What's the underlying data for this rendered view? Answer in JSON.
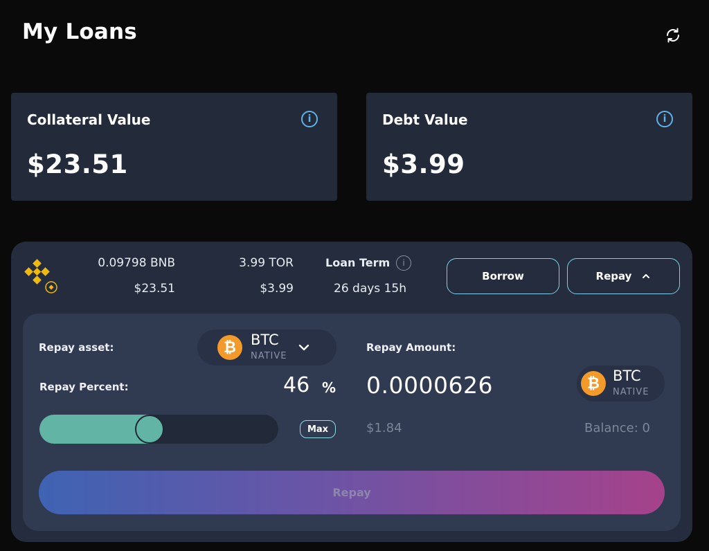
{
  "header": {
    "title": "My Loans",
    "refresh_icon": "refresh-icon"
  },
  "summary": {
    "collateral": {
      "label": "Collateral Value",
      "value": "$23.51",
      "info_glyph": "i"
    },
    "debt": {
      "label": "Debt Value",
      "value": "$3.99",
      "info_glyph": "i"
    }
  },
  "loan": {
    "collateral_logo": "bnb-icon",
    "collateral_amount": "0.09798 BNB",
    "collateral_usd": "$23.51",
    "debt_amount": "3.99 TOR",
    "debt_usd": "$3.99",
    "term_label": "Loan Term",
    "term_info_glyph": "i",
    "term_value": "26 days 15h",
    "borrow_label": "Borrow",
    "repay_label": "Repay",
    "repay_chevron": "chevron-up-icon"
  },
  "repay_panel": {
    "asset_label": "Repay asset:",
    "asset": {
      "symbol": "BTC",
      "network": "NATIVE",
      "coin_glyph": "₿",
      "dropdown_icon": "chevron-down-icon"
    },
    "amount_label": "Repay Amount:",
    "percent_label": "Repay Percent:",
    "percent_value": "46",
    "percent_sign": "%",
    "slider_fraction": 0.46,
    "amount_value": "0.0000626",
    "amount_asset": {
      "symbol": "BTC",
      "network": "NATIVE",
      "coin_glyph": "₿"
    },
    "max_label": "Max",
    "usd_value": "$1.84",
    "balance_text": "Balance: 0",
    "submit_label": "Repay"
  },
  "colors": {
    "accent_teal": "#62b4a5",
    "info_blue": "#5fb3e8",
    "btc_orange": "#f39a2b",
    "bnb_gold": "#f0b90b",
    "gradient_start": "#3f63b3",
    "gradient_end": "#a6428b"
  }
}
